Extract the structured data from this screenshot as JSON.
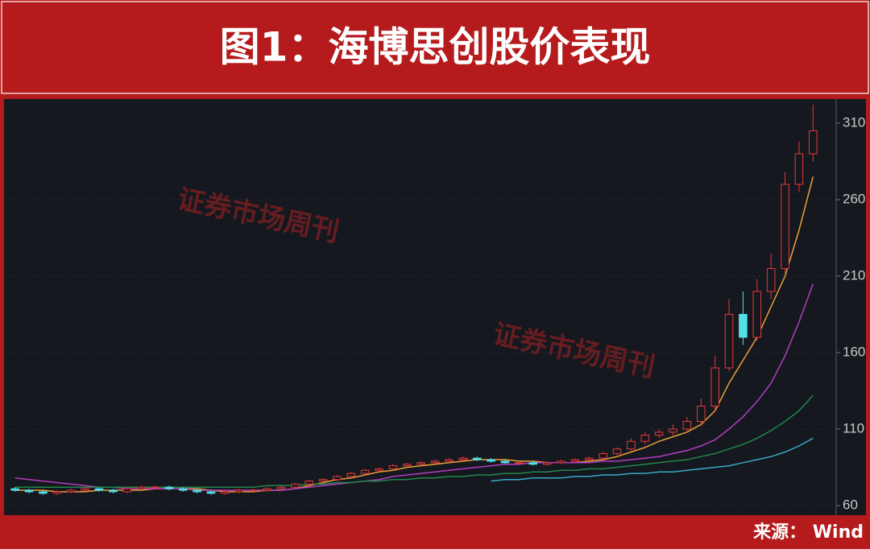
{
  "chart_data": {
    "type": "candlestick",
    "title": "图1：海博思创股价表现",
    "source": "来源： Wind",
    "watermark": "证券市场周刊",
    "open": [
      71,
      70,
      69,
      68,
      69,
      70,
      71,
      70,
      69,
      71,
      72,
      72,
      71,
      70,
      69,
      68,
      69,
      70,
      70,
      71,
      72,
      74,
      76,
      77,
      79,
      81,
      83,
      84,
      86,
      87,
      88,
      89,
      90,
      91,
      90,
      89,
      88,
      88,
      87,
      88,
      89,
      90,
      91,
      94,
      97,
      102,
      106,
      108,
      110,
      115,
      125,
      150,
      185,
      170,
      200,
      215,
      270,
      290
    ],
    "high": [
      72,
      71,
      70,
      70,
      71,
      72,
      72,
      71,
      72,
      73,
      73,
      73,
      72,
      71,
      70,
      70,
      71,
      71,
      72,
      73,
      75,
      77,
      78,
      80,
      82,
      84,
      85,
      87,
      88,
      89,
      90,
      91,
      92,
      92,
      91,
      90,
      89,
      89,
      89,
      90,
      91,
      92,
      95,
      98,
      104,
      108,
      110,
      113,
      118,
      130,
      158,
      195,
      200,
      208,
      225,
      278,
      298,
      322
    ],
    "low": [
      69,
      68,
      67,
      67,
      68,
      69,
      69,
      68,
      68,
      70,
      71,
      70,
      69,
      68,
      67,
      67,
      68,
      69,
      69,
      70,
      71,
      73,
      75,
      76,
      78,
      80,
      82,
      83,
      85,
      86,
      87,
      88,
      89,
      89,
      88,
      87,
      87,
      86,
      86,
      87,
      88,
      89,
      90,
      93,
      96,
      100,
      104,
      106,
      108,
      112,
      122,
      148,
      165,
      168,
      195,
      212,
      265,
      285
    ],
    "close": [
      70,
      69,
      68,
      69,
      70,
      71,
      70,
      69,
      71,
      72,
      72,
      71,
      70,
      69,
      68,
      69,
      70,
      70,
      71,
      72,
      74,
      76,
      77,
      79,
      81,
      83,
      84,
      86,
      87,
      88,
      89,
      90,
      91,
      90,
      89,
      88,
      88,
      87,
      88,
      89,
      90,
      91,
      94,
      97,
      102,
      106,
      108,
      110,
      115,
      125,
      150,
      185,
      170,
      200,
      215,
      270,
      290,
      305
    ],
    "up_color": "#e8383a",
    "down_color": "#52e0e6",
    "series": [
      {
        "color": "#e8a23a",
        "values": [
          70,
          70,
          70,
          69,
          69,
          69,
          70,
          70,
          70,
          70,
          71,
          71,
          71,
          71,
          70,
          69,
          69,
          69,
          70,
          70,
          71,
          73,
          75,
          77,
          78,
          80,
          82,
          83,
          85,
          86,
          87,
          88,
          89,
          90,
          90,
          90,
          89,
          89,
          88,
          88,
          88,
          89,
          90,
          92,
          95,
          98,
          102,
          105,
          108,
          113,
          122,
          140,
          155,
          170,
          190,
          210,
          240,
          275
        ]
      },
      {
        "color": "#b43cc4",
        "values": [
          78,
          77,
          76,
          75,
          74,
          73,
          72,
          72,
          71,
          71,
          71,
          71,
          71,
          70,
          70,
          70,
          70,
          70,
          70,
          70,
          71,
          72,
          73,
          74,
          75,
          76,
          77,
          79,
          80,
          81,
          82,
          83,
          84,
          85,
          86,
          87,
          87,
          88,
          88,
          88,
          88,
          88,
          89,
          89,
          90,
          91,
          92,
          94,
          96,
          99,
          103,
          110,
          118,
          128,
          140,
          158,
          180,
          205
        ]
      },
      {
        "color": "#23874a",
        "values": [
          72,
          72,
          72,
          72,
          72,
          72,
          72,
          72,
          72,
          72,
          72,
          72,
          72,
          72,
          72,
          72,
          72,
          72,
          73,
          73,
          73,
          74,
          74,
          75,
          75,
          76,
          76,
          77,
          77,
          78,
          78,
          79,
          79,
          80,
          80,
          81,
          81,
          82,
          82,
          83,
          83,
          84,
          84,
          85,
          86,
          87,
          88,
          89,
          90,
          92,
          94,
          97,
          100,
          104,
          109,
          115,
          122,
          132
        ]
      },
      {
        "color": "#3aa8c8",
        "values": [
          null,
          null,
          null,
          null,
          null,
          null,
          null,
          null,
          null,
          null,
          null,
          null,
          null,
          null,
          null,
          null,
          null,
          null,
          null,
          null,
          null,
          null,
          null,
          null,
          null,
          null,
          null,
          null,
          null,
          null,
          null,
          null,
          null,
          null,
          76,
          77,
          77,
          78,
          78,
          78,
          79,
          79,
          80,
          80,
          81,
          81,
          82,
          82,
          83,
          84,
          85,
          86,
          88,
          90,
          92,
          95,
          99,
          104
        ]
      }
    ],
    "ylim": [
      53.7,
      325.8
    ],
    "yticks": [
      60,
      110,
      160,
      210,
      260,
      310
    ],
    "grid": true
  }
}
